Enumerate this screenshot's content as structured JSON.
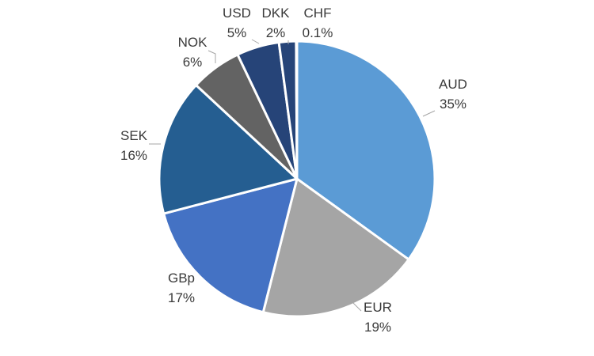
{
  "chart_data": {
    "type": "pie",
    "title": "",
    "legend": "none",
    "slices": [
      {
        "category": "AUD",
        "value": 35,
        "label": "35%",
        "color": "#5b9bd5"
      },
      {
        "category": "EUR",
        "value": 19,
        "label": "19%",
        "color": "#a5a5a5"
      },
      {
        "category": "GBp",
        "value": 17,
        "label": "17%",
        "color": "#4472c4"
      },
      {
        "category": "SEK",
        "value": 16,
        "label": "16%",
        "color": "#255e91"
      },
      {
        "category": "NOK",
        "value": 6,
        "label": "6%",
        "color": "#636363"
      },
      {
        "category": "USD",
        "value": 5,
        "label": "5%",
        "color": "#264478"
      },
      {
        "category": "DKK",
        "value": 2,
        "label": "2%",
        "color": "#264478"
      },
      {
        "category": "CHF",
        "value": 0.1,
        "label": "0.1%",
        "color": "#9dc3e6"
      }
    ]
  }
}
